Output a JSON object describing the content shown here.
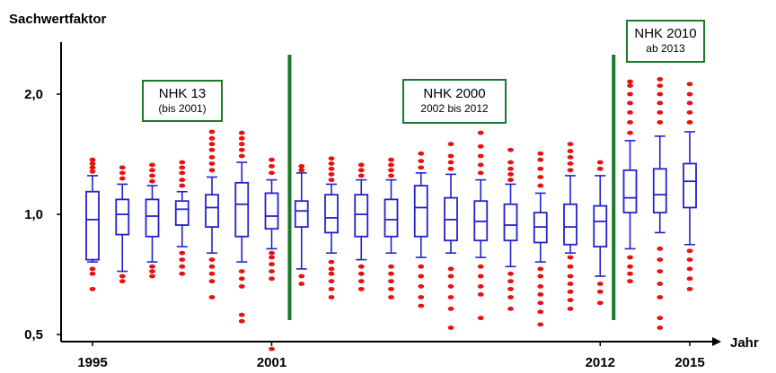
{
  "chart_data": {
    "type": "boxplot",
    "ylabel": "Sachwertfaktor",
    "xlabel": "Jahr",
    "y_scale": "log",
    "ylim": [
      0.48,
      2.7
    ],
    "y_ticks": [
      {
        "value": 0.5,
        "label": "0,5"
      },
      {
        "value": 1.0,
        "label": "1,0"
      },
      {
        "value": 2.0,
        "label": "2,0"
      }
    ],
    "x_tick_labels": [
      {
        "year": 1995,
        "label": "1995"
      },
      {
        "year": 2001,
        "label": "2001"
      },
      {
        "year": 2012,
        "label": "2012"
      },
      {
        "year": 2015,
        "label": "2015"
      }
    ],
    "boxes": [
      {
        "year": 1995,
        "whisker_low": 0.76,
        "q1": 0.77,
        "median": 0.97,
        "q3": 1.14,
        "whisker_high": 1.25,
        "outliers_low": [
          0.73,
          0.71,
          0.65
        ],
        "outliers_high": [
          1.28,
          1.31,
          1.34,
          1.37
        ]
      },
      {
        "year": 1996,
        "whisker_low": 0.72,
        "q1": 0.89,
        "median": 1.0,
        "q3": 1.09,
        "whisker_high": 1.19,
        "outliers_low": [
          0.7,
          0.68
        ],
        "outliers_high": [
          1.23,
          1.27,
          1.31
        ]
      },
      {
        "year": 1997,
        "whisker_low": 0.76,
        "q1": 0.88,
        "median": 0.99,
        "q3": 1.09,
        "whisker_high": 1.18,
        "outliers_low": [
          0.74,
          0.72,
          0.7
        ],
        "outliers_high": [
          1.21,
          1.25,
          1.29,
          1.33
        ]
      },
      {
        "year": 1998,
        "whisker_low": 0.83,
        "q1": 0.94,
        "median": 1.03,
        "q3": 1.08,
        "whisker_high": 1.14,
        "outliers_low": [
          0.8,
          0.77,
          0.74,
          0.71
        ],
        "outliers_high": [
          1.18,
          1.22,
          1.27,
          1.31,
          1.35
        ]
      },
      {
        "year": 1999,
        "whisker_low": 0.8,
        "q1": 0.93,
        "median": 1.04,
        "q3": 1.12,
        "whisker_high": 1.24,
        "outliers_low": [
          0.77,
          0.74,
          0.71,
          0.68,
          0.62
        ],
        "outliers_high": [
          1.29,
          1.34,
          1.39,
          1.45,
          1.5,
          1.55,
          1.61
        ]
      },
      {
        "year": 2000,
        "whisker_low": 0.76,
        "q1": 0.88,
        "median": 1.06,
        "q3": 1.2,
        "whisker_high": 1.35,
        "outliers_low": [
          0.72,
          0.69,
          0.66,
          0.56,
          0.54
        ],
        "outliers_high": [
          1.4,
          1.45,
          1.5,
          1.55,
          1.6
        ]
      },
      {
        "year": 2001,
        "whisker_low": 0.82,
        "q1": 0.92,
        "median": 0.99,
        "q3": 1.13,
        "whisker_high": 1.22,
        "outliers_low": [
          0.8,
          0.78,
          0.75,
          0.72,
          0.69,
          0.46
        ],
        "outliers_high": [
          1.27,
          1.32,
          1.37
        ]
      },
      {
        "year": 2002,
        "whisker_low": 0.73,
        "q1": 0.93,
        "median": 1.02,
        "q3": 1.08,
        "whisker_high": 1.27,
        "outliers_low": [
          0.7,
          0.67
        ],
        "outliers_high": [
          1.29,
          1.32
        ]
      },
      {
        "year": 2003,
        "whisker_low": 0.8,
        "q1": 0.9,
        "median": 0.98,
        "q3": 1.12,
        "whisker_high": 1.19,
        "outliers_low": [
          0.76,
          0.73,
          0.71,
          0.68,
          0.65,
          0.62
        ],
        "outliers_high": [
          1.22,
          1.26,
          1.3,
          1.34,
          1.38
        ]
      },
      {
        "year": 2004,
        "whisker_low": 0.77,
        "q1": 0.88,
        "median": 1.0,
        "q3": 1.12,
        "whisker_high": 1.22,
        "outliers_low": [
          0.74,
          0.71,
          0.68,
          0.65
        ],
        "outliers_high": [
          1.25,
          1.29,
          1.33
        ]
      },
      {
        "year": 2005,
        "whisker_low": 0.8,
        "q1": 0.88,
        "median": 0.97,
        "q3": 1.09,
        "whisker_high": 1.22,
        "outliers_low": [
          0.74,
          0.71,
          0.68,
          0.65,
          0.62
        ],
        "outliers_high": [
          1.25,
          1.29,
          1.33,
          1.37
        ]
      },
      {
        "year": 2006,
        "whisker_low": 0.78,
        "q1": 0.88,
        "median": 1.04,
        "q3": 1.18,
        "whisker_high": 1.27,
        "outliers_low": [
          0.74,
          0.7,
          0.66,
          0.62,
          0.59
        ],
        "outliers_high": [
          1.31,
          1.36,
          1.42
        ]
      },
      {
        "year": 2007,
        "whisker_low": 0.8,
        "q1": 0.86,
        "median": 0.97,
        "q3": 1.1,
        "whisker_high": 1.26,
        "outliers_low": [
          0.73,
          0.7,
          0.66,
          0.62,
          0.58,
          0.52
        ],
        "outliers_high": [
          1.3,
          1.35,
          1.4,
          1.5
        ]
      },
      {
        "year": 2008,
        "whisker_low": 0.78,
        "q1": 0.86,
        "median": 0.96,
        "q3": 1.08,
        "whisker_high": 1.22,
        "outliers_low": [
          0.74,
          0.7,
          0.66,
          0.63,
          0.55
        ],
        "outliers_high": [
          1.27,
          1.33,
          1.4,
          1.48,
          1.6
        ]
      },
      {
        "year": 2009,
        "whisker_low": 0.74,
        "q1": 0.86,
        "median": 0.94,
        "q3": 1.06,
        "whisker_high": 1.19,
        "outliers_low": [
          0.71,
          0.68,
          0.65,
          0.62,
          0.58
        ],
        "outliers_high": [
          1.22,
          1.26,
          1.3,
          1.35,
          1.45
        ]
      },
      {
        "year": 2010,
        "whisker_low": 0.76,
        "q1": 0.85,
        "median": 0.93,
        "q3": 1.01,
        "whisker_high": 1.13,
        "outliers_low": [
          0.73,
          0.7,
          0.66,
          0.63,
          0.6,
          0.57,
          0.53
        ],
        "outliers_high": [
          1.18,
          1.24,
          1.3,
          1.37,
          1.42
        ]
      },
      {
        "year": 2011,
        "whisker_low": 0.8,
        "q1": 0.84,
        "median": 0.93,
        "q3": 1.06,
        "whisker_high": 1.25,
        "outliers_low": [
          0.78,
          0.74,
          0.7,
          0.67,
          0.64,
          0.61,
          0.58
        ],
        "outliers_high": [
          1.29,
          1.34,
          1.39,
          1.44,
          1.5
        ]
      },
      {
        "year": 2012,
        "whisker_low": 0.7,
        "q1": 0.83,
        "median": 0.96,
        "q3": 1.05,
        "whisker_high": 1.25,
        "outliers_low": [
          0.67,
          0.64,
          0.6
        ],
        "outliers_high": [
          1.3,
          1.35
        ]
      },
      {
        "year": 2013,
        "whisker_low": 0.82,
        "q1": 1.01,
        "median": 1.1,
        "q3": 1.29,
        "whisker_high": 1.53,
        "outliers_low": [
          0.78,
          0.74,
          0.71,
          0.68
        ],
        "outliers_high": [
          1.6,
          1.7,
          1.8,
          1.9,
          2.0,
          2.1,
          2.15
        ]
      },
      {
        "year": 2014,
        "whisker_low": 0.9,
        "q1": 1.01,
        "median": 1.12,
        "q3": 1.3,
        "whisker_high": 1.57,
        "outliers_low": [
          0.82,
          0.77,
          0.72,
          0.67,
          0.62,
          0.55,
          0.52
        ],
        "outliers_high": [
          1.7,
          1.8,
          1.9,
          2.0,
          2.1,
          2.18
        ]
      },
      {
        "year": 2015,
        "whisker_low": 0.84,
        "q1": 1.04,
        "median": 1.21,
        "q3": 1.34,
        "whisker_high": 1.61,
        "outliers_low": [
          0.81,
          0.77,
          0.73,
          0.69,
          0.65
        ],
        "outliers_high": [
          1.7,
          1.8,
          1.9,
          2.0,
          2.12
        ]
      }
    ],
    "period_dividers": [
      2001.6,
      2012.45
    ],
    "annotations": [
      {
        "id": "nhk13",
        "line1": "NHK 13",
        "line2": "(bis 2001)"
      },
      {
        "id": "nhk2000",
        "line1": "NHK 2000",
        "line2": "2002 bis 2012"
      },
      {
        "id": "nhk2010",
        "line1": "NHK 2010",
        "line2": "ab 2013"
      }
    ],
    "colors": {
      "box": "#2222cc",
      "outlier": "#e81010",
      "divider": "#1a7a2a",
      "axis": "#000000"
    }
  }
}
